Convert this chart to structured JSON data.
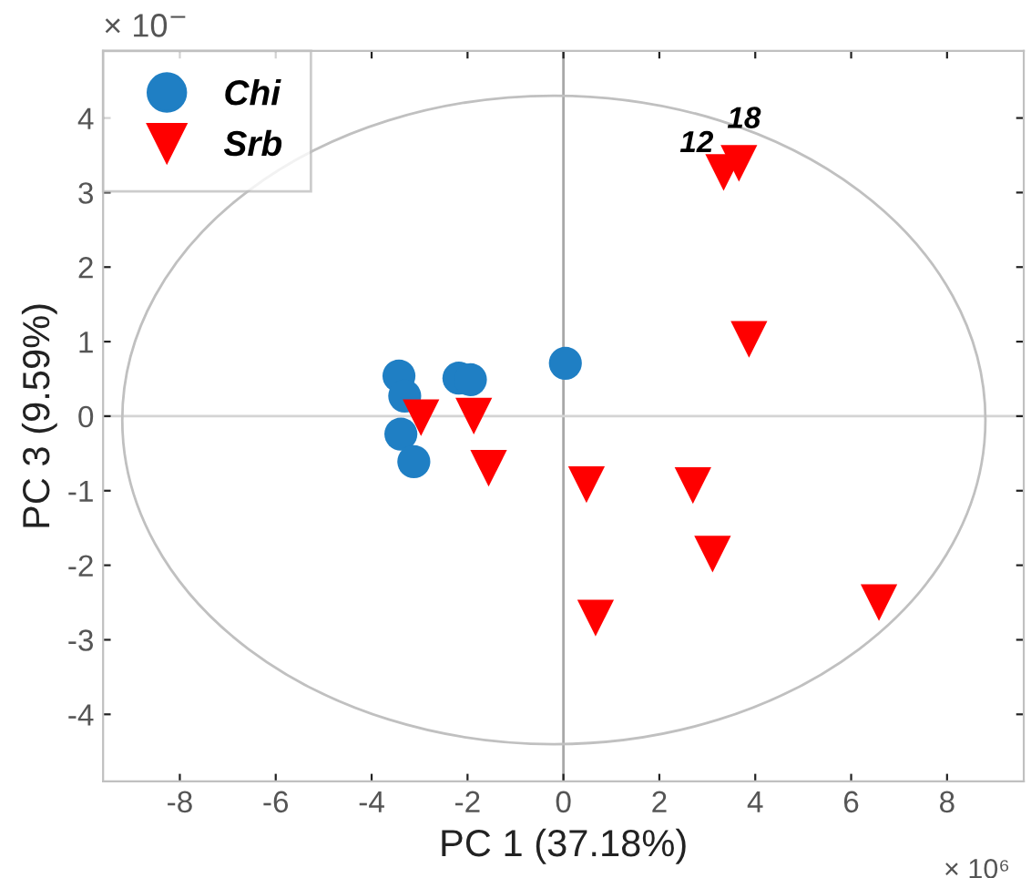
{
  "chart_data": {
    "type": "scatter",
    "xlabel": "PC 1 (37.18%)",
    "ylabel": "PC 3 (9.59%)",
    "xlim": [
      -9.6,
      9.6
    ],
    "ylim": [
      -4.9,
      4.9
    ],
    "xticks": [
      -8,
      -6,
      -4,
      -2,
      0,
      2,
      4,
      6,
      8
    ],
    "yticks": [
      -4,
      -3,
      -2,
      -1,
      0,
      1,
      2,
      3,
      4
    ],
    "grid": false,
    "legend": "top left",
    "ref_lines": [
      {
        "axis": "x",
        "value": 0,
        "color": "#a8a8a8"
      },
      {
        "axis": "y",
        "value": 0,
        "color": "#d4d4d4"
      }
    ],
    "series": [
      {
        "name": "Chi",
        "color": "#1f7fc4",
        "marker": "circle",
        "x": [
          -3.43,
          -3.31,
          -3.39,
          -3.12,
          -2.18,
          -1.94,
          0.04
        ],
        "values": [
          0.54,
          0.27,
          -0.24,
          -0.61,
          0.51,
          0.49,
          0.71
        ]
      },
      {
        "name": "Srb",
        "color": "#ff0000",
        "marker": "triangle",
        "x": [
          -2.97,
          -1.87,
          -1.56,
          0.48,
          3.34,
          3.66,
          3.87,
          2.7,
          3.11,
          0.67,
          6.58
        ],
        "values": [
          -0.02,
          0.0,
          -0.7,
          -0.92,
          3.27,
          3.39,
          1.03,
          -0.93,
          -1.85,
          -2.71,
          -2.5
        ]
      }
    ],
    "annotations": [
      {
        "text": "12",
        "x": 3.34,
        "y": 3.27
      },
      {
        "text": "18",
        "x": 3.66,
        "y": 3.39
      },
      "× 10⁶",
      "× 10$^{−}$"
    ]
  }
}
